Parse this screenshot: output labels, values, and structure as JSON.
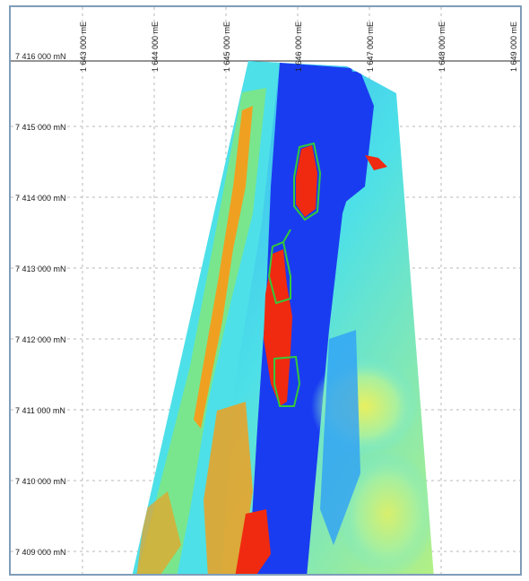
{
  "map": {
    "easting_labels": [
      "1 643 000 mE",
      "1 644 000 mE",
      "1 645 000 mE",
      "1 646 000 mE",
      "1 647 000 mE",
      "1 648 000 mE",
      "1 649 000 mE"
    ],
    "northing_labels": [
      "7 416 000 mN",
      "7 415 000 mN",
      "7 414 000 mN",
      "7 413 000 mN",
      "7 412 000 mN",
      "7 411 000 mN",
      "7 410 000 mN",
      "7 409 000 mN"
    ],
    "outline_color": "#34c93a",
    "palette": {
      "low": "#1a3cf0",
      "mid_low": "#2ea0f8",
      "mid": "#4de0e8",
      "mid_high": "#c8f040",
      "high": "#f0a020",
      "max": "#f02a10"
    }
  }
}
